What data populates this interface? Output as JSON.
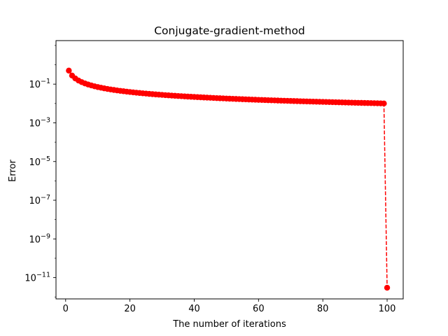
{
  "chart_data": {
    "type": "line",
    "title": "Conjugate-gradient-method",
    "xlabel": "The number of iterations",
    "ylabel": "Error",
    "xscale": "linear",
    "yscale": "log",
    "xlim": [
      -3,
      105
    ],
    "ylim_exponent": [
      -12.1,
      1.25
    ],
    "x_ticks": [
      0,
      20,
      40,
      60,
      80,
      100
    ],
    "y_ticks": [
      {
        "exponent": -11,
        "label": "10^-11"
      },
      {
        "exponent": -9,
        "label": "10^-9"
      },
      {
        "exponent": -7,
        "label": "10^-7"
      },
      {
        "exponent": -5,
        "label": "10^-5"
      },
      {
        "exponent": -3,
        "label": "10^-3"
      },
      {
        "exponent": -1,
        "label": "10^-1"
      }
    ],
    "grid": false,
    "legend": "none",
    "series": [
      {
        "style": "dashed line with circle markers",
        "color": "#ff0000",
        "x_start": 1,
        "x_end": 100,
        "y_first": 0.5,
        "y_iteration_99": 0.01,
        "y_last": 3e-12,
        "y_form": "approximately 0.5 / n^0.85 for iterations 1-99"
      }
    ]
  }
}
